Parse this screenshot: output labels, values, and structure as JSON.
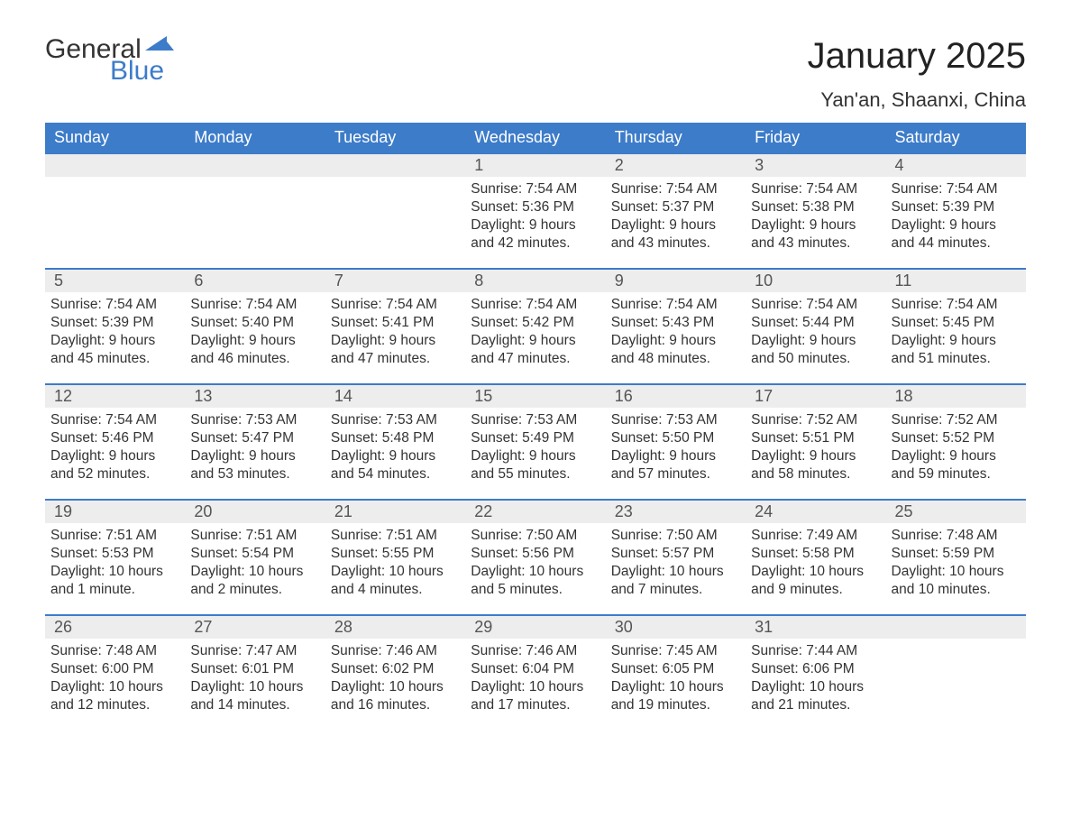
{
  "brand": {
    "general": "General",
    "blue": "Blue",
    "flag_color": "#3d7cc9"
  },
  "title": "January 2025",
  "subtitle": "Yan'an, Shaanxi, China",
  "colors": {
    "header_bg": "#3d7cc9",
    "header_text": "#ffffff",
    "daynum_bg": "#ededed",
    "daynum_text": "#555555",
    "body_text": "#333333",
    "week_border": "#3d7cc9",
    "page_bg": "#ffffff"
  },
  "typography": {
    "title_fontsize": 40,
    "subtitle_fontsize": 22,
    "dow_fontsize": 18,
    "daynum_fontsize": 18,
    "body_fontsize": 15.5
  },
  "dow": [
    "Sunday",
    "Monday",
    "Tuesday",
    "Wednesday",
    "Thursday",
    "Friday",
    "Saturday"
  ],
  "weeks": [
    [
      null,
      null,
      null,
      {
        "n": "1",
        "sr": "Sunrise: 7:54 AM",
        "ss": "Sunset: 5:36 PM",
        "d1": "Daylight: 9 hours",
        "d2": "and 42 minutes."
      },
      {
        "n": "2",
        "sr": "Sunrise: 7:54 AM",
        "ss": "Sunset: 5:37 PM",
        "d1": "Daylight: 9 hours",
        "d2": "and 43 minutes."
      },
      {
        "n": "3",
        "sr": "Sunrise: 7:54 AM",
        "ss": "Sunset: 5:38 PM",
        "d1": "Daylight: 9 hours",
        "d2": "and 43 minutes."
      },
      {
        "n": "4",
        "sr": "Sunrise: 7:54 AM",
        "ss": "Sunset: 5:39 PM",
        "d1": "Daylight: 9 hours",
        "d2": "and 44 minutes."
      }
    ],
    [
      {
        "n": "5",
        "sr": "Sunrise: 7:54 AM",
        "ss": "Sunset: 5:39 PM",
        "d1": "Daylight: 9 hours",
        "d2": "and 45 minutes."
      },
      {
        "n": "6",
        "sr": "Sunrise: 7:54 AM",
        "ss": "Sunset: 5:40 PM",
        "d1": "Daylight: 9 hours",
        "d2": "and 46 minutes."
      },
      {
        "n": "7",
        "sr": "Sunrise: 7:54 AM",
        "ss": "Sunset: 5:41 PM",
        "d1": "Daylight: 9 hours",
        "d2": "and 47 minutes."
      },
      {
        "n": "8",
        "sr": "Sunrise: 7:54 AM",
        "ss": "Sunset: 5:42 PM",
        "d1": "Daylight: 9 hours",
        "d2": "and 47 minutes."
      },
      {
        "n": "9",
        "sr": "Sunrise: 7:54 AM",
        "ss": "Sunset: 5:43 PM",
        "d1": "Daylight: 9 hours",
        "d2": "and 48 minutes."
      },
      {
        "n": "10",
        "sr": "Sunrise: 7:54 AM",
        "ss": "Sunset: 5:44 PM",
        "d1": "Daylight: 9 hours",
        "d2": "and 50 minutes."
      },
      {
        "n": "11",
        "sr": "Sunrise: 7:54 AM",
        "ss": "Sunset: 5:45 PM",
        "d1": "Daylight: 9 hours",
        "d2": "and 51 minutes."
      }
    ],
    [
      {
        "n": "12",
        "sr": "Sunrise: 7:54 AM",
        "ss": "Sunset: 5:46 PM",
        "d1": "Daylight: 9 hours",
        "d2": "and 52 minutes."
      },
      {
        "n": "13",
        "sr": "Sunrise: 7:53 AM",
        "ss": "Sunset: 5:47 PM",
        "d1": "Daylight: 9 hours",
        "d2": "and 53 minutes."
      },
      {
        "n": "14",
        "sr": "Sunrise: 7:53 AM",
        "ss": "Sunset: 5:48 PM",
        "d1": "Daylight: 9 hours",
        "d2": "and 54 minutes."
      },
      {
        "n": "15",
        "sr": "Sunrise: 7:53 AM",
        "ss": "Sunset: 5:49 PM",
        "d1": "Daylight: 9 hours",
        "d2": "and 55 minutes."
      },
      {
        "n": "16",
        "sr": "Sunrise: 7:53 AM",
        "ss": "Sunset: 5:50 PM",
        "d1": "Daylight: 9 hours",
        "d2": "and 57 minutes."
      },
      {
        "n": "17",
        "sr": "Sunrise: 7:52 AM",
        "ss": "Sunset: 5:51 PM",
        "d1": "Daylight: 9 hours",
        "d2": "and 58 minutes."
      },
      {
        "n": "18",
        "sr": "Sunrise: 7:52 AM",
        "ss": "Sunset: 5:52 PM",
        "d1": "Daylight: 9 hours",
        "d2": "and 59 minutes."
      }
    ],
    [
      {
        "n": "19",
        "sr": "Sunrise: 7:51 AM",
        "ss": "Sunset: 5:53 PM",
        "d1": "Daylight: 10 hours",
        "d2": "and 1 minute."
      },
      {
        "n": "20",
        "sr": "Sunrise: 7:51 AM",
        "ss": "Sunset: 5:54 PM",
        "d1": "Daylight: 10 hours",
        "d2": "and 2 minutes."
      },
      {
        "n": "21",
        "sr": "Sunrise: 7:51 AM",
        "ss": "Sunset: 5:55 PM",
        "d1": "Daylight: 10 hours",
        "d2": "and 4 minutes."
      },
      {
        "n": "22",
        "sr": "Sunrise: 7:50 AM",
        "ss": "Sunset: 5:56 PM",
        "d1": "Daylight: 10 hours",
        "d2": "and 5 minutes."
      },
      {
        "n": "23",
        "sr": "Sunrise: 7:50 AM",
        "ss": "Sunset: 5:57 PM",
        "d1": "Daylight: 10 hours",
        "d2": "and 7 minutes."
      },
      {
        "n": "24",
        "sr": "Sunrise: 7:49 AM",
        "ss": "Sunset: 5:58 PM",
        "d1": "Daylight: 10 hours",
        "d2": "and 9 minutes."
      },
      {
        "n": "25",
        "sr": "Sunrise: 7:48 AM",
        "ss": "Sunset: 5:59 PM",
        "d1": "Daylight: 10 hours",
        "d2": "and 10 minutes."
      }
    ],
    [
      {
        "n": "26",
        "sr": "Sunrise: 7:48 AM",
        "ss": "Sunset: 6:00 PM",
        "d1": "Daylight: 10 hours",
        "d2": "and 12 minutes."
      },
      {
        "n": "27",
        "sr": "Sunrise: 7:47 AM",
        "ss": "Sunset: 6:01 PM",
        "d1": "Daylight: 10 hours",
        "d2": "and 14 minutes."
      },
      {
        "n": "28",
        "sr": "Sunrise: 7:46 AM",
        "ss": "Sunset: 6:02 PM",
        "d1": "Daylight: 10 hours",
        "d2": "and 16 minutes."
      },
      {
        "n": "29",
        "sr": "Sunrise: 7:46 AM",
        "ss": "Sunset: 6:04 PM",
        "d1": "Daylight: 10 hours",
        "d2": "and 17 minutes."
      },
      {
        "n": "30",
        "sr": "Sunrise: 7:45 AM",
        "ss": "Sunset: 6:05 PM",
        "d1": "Daylight: 10 hours",
        "d2": "and 19 minutes."
      },
      {
        "n": "31",
        "sr": "Sunrise: 7:44 AM",
        "ss": "Sunset: 6:06 PM",
        "d1": "Daylight: 10 hours",
        "d2": "and 21 minutes."
      },
      null
    ]
  ]
}
